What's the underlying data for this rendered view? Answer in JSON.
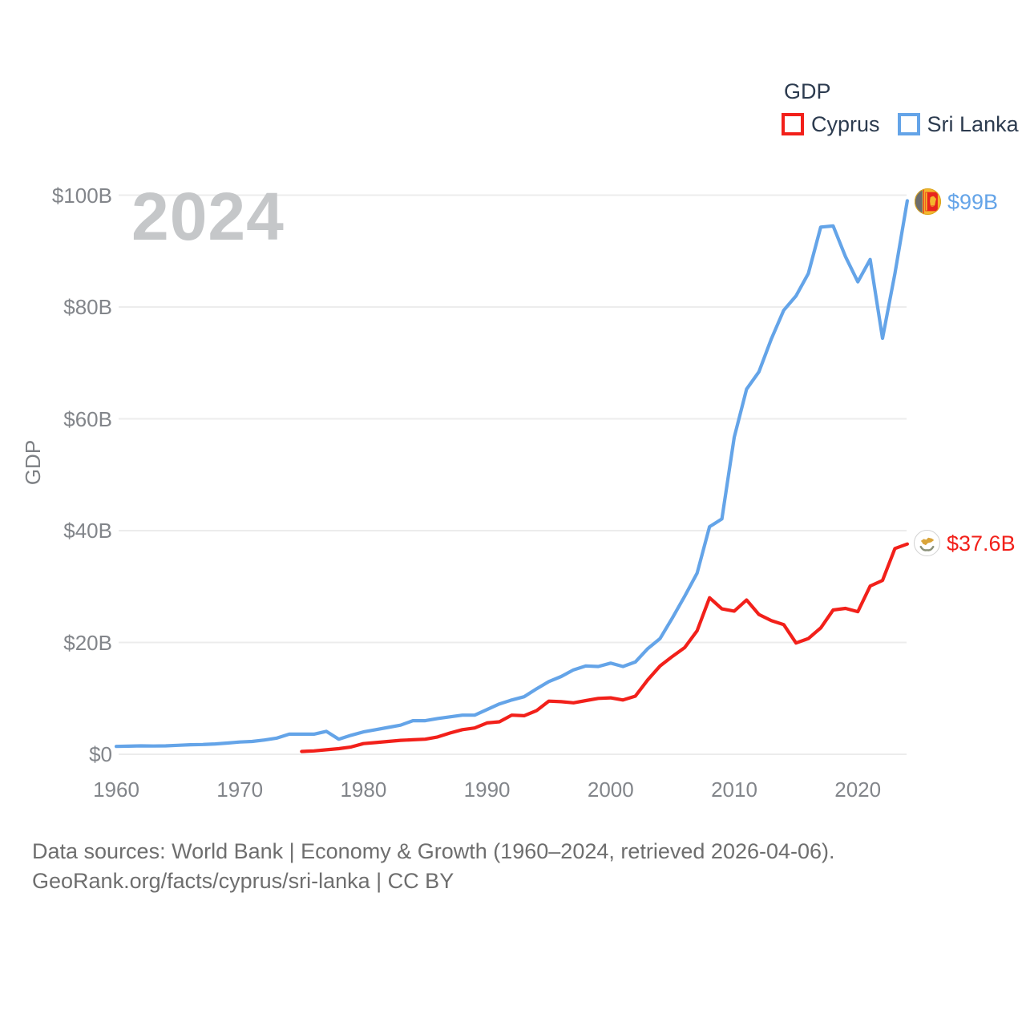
{
  "watermark": "2024",
  "legend": {
    "title": "GDP",
    "items": [
      {
        "label": "Cyprus",
        "color": "#f2201a"
      },
      {
        "label": "Sri Lanka",
        "color": "#64a4e8"
      }
    ]
  },
  "end_labels": {
    "sri_lanka": {
      "label": "$99B",
      "color": "#64a4e8",
      "flag": "sri-lanka-flag"
    },
    "cyprus": {
      "label": "$37.6B",
      "color": "#f2201a",
      "flag": "cyprus-flag"
    }
  },
  "footer": {
    "line1": "Data sources: World Bank | Economy & Growth (1960–2024, retrieved 2026-04-06).",
    "line2": "GeoRank.org/facts/cyprus/sri-lanka | CC BY"
  },
  "chart_data": {
    "type": "line",
    "title": "GDP",
    "xlabel": "",
    "ylabel": "GDP",
    "x_range": [
      1960,
      2024
    ],
    "ylim": [
      0,
      100
    ],
    "grid": "horizontal",
    "legend_position": "top-right",
    "y_axis": {
      "tick_values": [
        0,
        20,
        40,
        60,
        80,
        100
      ],
      "tick_labels": [
        "$0",
        "$20B",
        "$40B",
        "$60B",
        "$80B",
        "$100B"
      ]
    },
    "x_axis": {
      "tick_values": [
        1960,
        1970,
        1980,
        1990,
        2000,
        2010,
        2020
      ],
      "tick_labels": [
        "1960",
        "1970",
        "1980",
        "1990",
        "2000",
        "2010",
        "2020"
      ]
    },
    "series": [
      {
        "name": "Sri Lanka",
        "color": "#64a4e8",
        "start_year": 1960,
        "end_value_label": "$99B",
        "values": [
          1.4,
          1.45,
          1.5,
          1.47,
          1.5,
          1.6,
          1.7,
          1.75,
          1.85,
          2.0,
          2.2,
          2.3,
          2.55,
          2.9,
          3.6,
          3.6,
          3.6,
          4.1,
          2.7,
          3.4,
          4.0,
          4.4,
          4.8,
          5.2,
          6.0,
          6.0,
          6.4,
          6.7,
          7.0,
          7.0,
          8.0,
          9.0,
          9.7,
          10.3,
          11.7,
          13.0,
          13.9,
          15.1,
          15.8,
          15.7,
          16.3,
          15.7,
          16.5,
          18.9,
          20.7,
          24.4,
          28.3,
          32.4,
          40.7,
          42.1,
          56.7,
          65.3,
          68.4,
          74.3,
          79.4,
          82.0,
          86.0,
          94.3,
          94.5,
          89.0,
          84.5,
          88.5,
          74.4,
          86.0,
          99.0
        ]
      },
      {
        "name": "Cyprus",
        "color": "#f2201a",
        "start_year": 1975,
        "end_value_label": "$37.6B",
        "values": [
          0.5,
          0.6,
          0.8,
          1.0,
          1.3,
          1.9,
          2.1,
          2.3,
          2.5,
          2.6,
          2.7,
          3.1,
          3.8,
          4.4,
          4.7,
          5.6,
          5.8,
          7.0,
          6.9,
          7.8,
          9.5,
          9.4,
          9.2,
          9.6,
          10.0,
          10.1,
          9.7,
          10.4,
          13.3,
          15.8,
          17.5,
          19.1,
          22.1,
          28.0,
          26.0,
          25.6,
          27.6,
          25.0,
          23.9,
          23.2,
          19.9,
          20.7,
          22.6,
          25.8,
          26.1,
          25.5,
          30.1,
          31.1,
          36.8,
          37.6
        ]
      }
    ]
  }
}
